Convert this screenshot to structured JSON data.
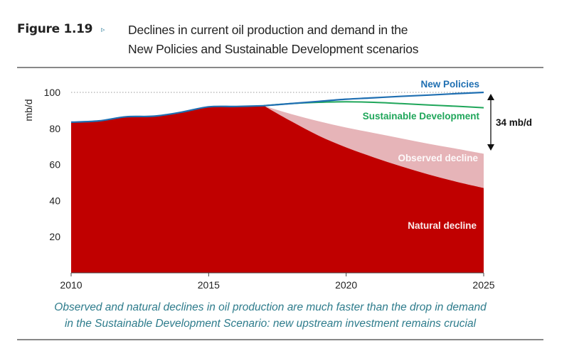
{
  "header": {
    "figure_label": "Figure 1.19",
    "arrow_glyph": "▹",
    "title_line1": "Declines in current oil production and demand in the",
    "title_line2": "New Policies and Sustainable Development scenarios"
  },
  "caption": {
    "line1": "Observed and natural declines in oil production are much faster than the drop in demand",
    "line2": "in the Sustainable Development Scenario: new upstream investment remains crucial"
  },
  "colors": {
    "natural_decline": "#c00000",
    "observed_decline": "#e6b4b8",
    "new_policies": "#1f6fb2",
    "sustainable_development": "#1fa65a",
    "caption": "#2e7c8c"
  },
  "chart_data": {
    "type": "area",
    "title": "Declines in current oil production and demand in the New Policies and Sustainable Development scenarios",
    "xlabel": "",
    "ylabel": "mb/d",
    "xlim": [
      2010,
      2025
    ],
    "ylim": [
      0,
      100
    ],
    "x_ticks": [
      "2010",
      "2015",
      "2020",
      "2025"
    ],
    "y_ticks": [
      "20",
      "40",
      "60",
      "80",
      "100"
    ],
    "gridlines": [
      100,
      66
    ],
    "historical": {
      "x": [
        2010,
        2011,
        2012,
        2013,
        2014,
        2015,
        2016,
        2017
      ],
      "values": [
        83.5,
        84.2,
        86.5,
        86.8,
        89,
        92,
        92.2,
        92.6
      ]
    },
    "series": [
      {
        "name": "New Policies",
        "kind": "line",
        "x": [
          2017,
          2018,
          2019,
          2020,
          2021,
          2022,
          2023,
          2024,
          2025
        ],
        "values": [
          92.6,
          93.8,
          95,
          96.2,
          97,
          97.8,
          98.5,
          99.3,
          100
        ]
      },
      {
        "name": "Sustainable Development",
        "kind": "line",
        "x": [
          2017,
          2018,
          2019,
          2020,
          2021,
          2022,
          2023,
          2024,
          2025
        ],
        "values": [
          92.6,
          93.8,
          94.5,
          94.8,
          94.5,
          93.8,
          93,
          92.3,
          91.5
        ]
      },
      {
        "name": "Observed decline",
        "kind": "area",
        "x": [
          2017,
          2018,
          2019,
          2020,
          2021,
          2022,
          2023,
          2024,
          2025
        ],
        "values": [
          92.6,
          88,
          84,
          80.5,
          77.5,
          74.5,
          71.5,
          68.8,
          66
        ]
      },
      {
        "name": "Natural decline",
        "kind": "area",
        "x": [
          2017,
          2018,
          2019,
          2020,
          2021,
          2022,
          2023,
          2024,
          2025
        ],
        "values": [
          92.6,
          84,
          76,
          69.5,
          64,
          59,
          54.5,
          50.5,
          47
        ]
      }
    ],
    "annotations": [
      {
        "text": "34 mb/d",
        "type": "double-arrow",
        "from": 100,
        "to": 66,
        "x": 2025
      }
    ],
    "labels": {
      "new_policies": "New Policies",
      "sustainable_development": "Sustainable Development",
      "observed_decline": "Observed decline",
      "natural_decline": "Natural decline",
      "gap": "34 mb/d"
    }
  }
}
